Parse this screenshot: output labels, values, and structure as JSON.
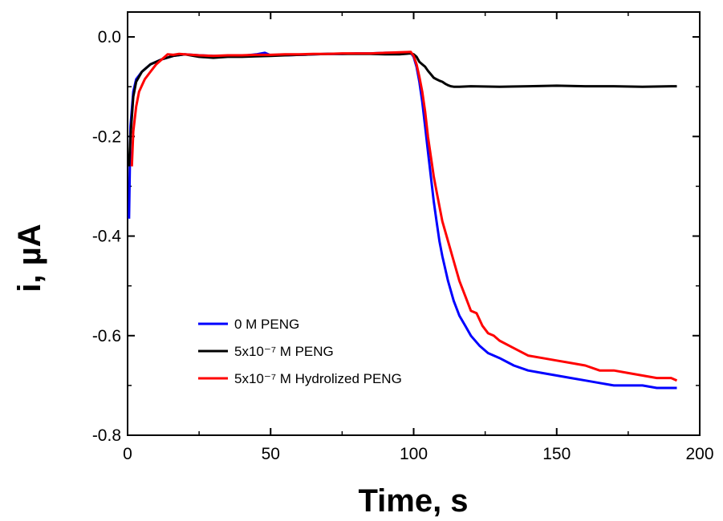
{
  "chart_data": {
    "type": "line",
    "xlabel": "Time, s",
    "ylabel": "i, µA",
    "xlim": [
      0,
      200
    ],
    "ylim": [
      -0.8,
      0.05
    ],
    "x_ticks": [
      0,
      50,
      100,
      150,
      200
    ],
    "x_tick_labels": [
      "0",
      "50",
      "100",
      "150",
      "200"
    ],
    "y_ticks": [
      0.0,
      -0.2,
      -0.4,
      -0.6,
      -0.8
    ],
    "y_tick_labels": [
      "0.0",
      "-0.2",
      "-0.4",
      "-0.6",
      "-0.8"
    ],
    "grid": false,
    "legend_position": "bottom-left",
    "series": [
      {
        "name": "0 M PENG",
        "color": "#0000ff",
        "x": [
          0.5,
          1,
          2,
          3,
          5,
          8,
          12,
          16,
          20,
          25,
          30,
          35,
          40,
          45,
          48,
          50,
          55,
          60,
          65,
          70,
          75,
          80,
          85,
          90,
          95,
          99,
          100,
          101,
          102,
          103,
          104,
          105,
          106,
          107,
          108,
          109,
          110,
          112,
          114,
          116,
          118,
          120,
          123,
          126,
          130,
          135,
          140,
          145,
          150,
          155,
          160,
          165,
          170,
          175,
          180,
          185,
          190,
          192
        ],
        "y": [
          -0.365,
          -0.18,
          -0.11,
          -0.085,
          -0.07,
          -0.055,
          -0.045,
          -0.038,
          -0.035,
          -0.037,
          -0.038,
          -0.039,
          -0.038,
          -0.035,
          -0.032,
          -0.037,
          -0.037,
          -0.036,
          -0.035,
          -0.034,
          -0.034,
          -0.033,
          -0.033,
          -0.032,
          -0.032,
          -0.032,
          -0.04,
          -0.06,
          -0.09,
          -0.13,
          -0.18,
          -0.23,
          -0.28,
          -0.33,
          -0.37,
          -0.41,
          -0.44,
          -0.49,
          -0.53,
          -0.56,
          -0.58,
          -0.6,
          -0.62,
          -0.635,
          -0.645,
          -0.66,
          -0.67,
          -0.675,
          -0.68,
          -0.685,
          -0.69,
          -0.695,
          -0.7,
          -0.7,
          -0.7,
          -0.705,
          -0.705,
          -0.705
        ]
      },
      {
        "name": "5x10⁻⁷ M PENG",
        "color": "#000000",
        "x": [
          0.5,
          1,
          2,
          3,
          5,
          8,
          12,
          16,
          20,
          25,
          30,
          35,
          40,
          45,
          50,
          55,
          60,
          65,
          70,
          75,
          80,
          85,
          90,
          95,
          99,
          100,
          101,
          102,
          103,
          104,
          105,
          106,
          107,
          108,
          109,
          110,
          111,
          112,
          113,
          114,
          116,
          120,
          130,
          140,
          150,
          160,
          170,
          180,
          190,
          192
        ],
        "y": [
          -0.26,
          -0.2,
          -0.12,
          -0.09,
          -0.07,
          -0.055,
          -0.045,
          -0.038,
          -0.035,
          -0.04,
          -0.042,
          -0.04,
          -0.04,
          -0.039,
          -0.038,
          -0.037,
          -0.036,
          -0.035,
          -0.034,
          -0.034,
          -0.034,
          -0.034,
          -0.035,
          -0.035,
          -0.033,
          -0.035,
          -0.04,
          -0.05,
          -0.055,
          -0.06,
          -0.068,
          -0.075,
          -0.082,
          -0.085,
          -0.088,
          -0.09,
          -0.094,
          -0.097,
          -0.099,
          -0.1,
          -0.1,
          -0.099,
          -0.1,
          -0.099,
          -0.098,
          -0.099,
          -0.099,
          -0.1,
          -0.099,
          -0.099
        ]
      },
      {
        "name": "5x10⁻⁷ M Hydrolized PENG",
        "color": "#ff0000",
        "x": [
          1.5,
          2,
          3,
          4,
          6,
          8,
          10,
          12,
          14,
          16,
          18,
          20,
          25,
          30,
          35,
          40,
          45,
          50,
          55,
          60,
          65,
          70,
          75,
          80,
          85,
          90,
          95,
          99,
          100,
          101,
          102,
          103,
          104,
          105,
          106,
          107,
          108,
          109,
          110,
          112,
          114,
          116,
          118,
          120,
          122,
          124,
          126,
          128,
          130,
          135,
          140,
          145,
          150,
          155,
          160,
          165,
          170,
          175,
          180,
          185,
          190,
          192
        ],
        "y": [
          -0.26,
          -0.19,
          -0.14,
          -0.11,
          -0.085,
          -0.07,
          -0.055,
          -0.045,
          -0.035,
          -0.036,
          -0.034,
          -0.035,
          -0.037,
          -0.038,
          -0.037,
          -0.037,
          -0.036,
          -0.036,
          -0.035,
          -0.035,
          -0.034,
          -0.034,
          -0.033,
          -0.033,
          -0.033,
          -0.032,
          -0.031,
          -0.03,
          -0.038,
          -0.055,
          -0.08,
          -0.11,
          -0.15,
          -0.2,
          -0.24,
          -0.28,
          -0.31,
          -0.34,
          -0.37,
          -0.41,
          -0.45,
          -0.49,
          -0.52,
          -0.55,
          -0.555,
          -0.58,
          -0.595,
          -0.6,
          -0.61,
          -0.625,
          -0.64,
          -0.645,
          -0.65,
          -0.655,
          -0.66,
          -0.67,
          -0.67,
          -0.675,
          -0.68,
          -0.685,
          -0.685,
          -0.69
        ]
      }
    ]
  }
}
